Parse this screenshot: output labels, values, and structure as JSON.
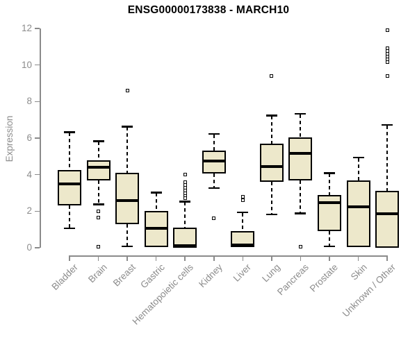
{
  "title": "ENSG00000173838 - MARCH10",
  "chart_data": {
    "type": "boxplot",
    "title": "ENSG00000173838 - MARCH10",
    "xlabel": "",
    "ylabel": "Expression",
    "ylim": [
      0,
      12
    ],
    "yticks": [
      0,
      2,
      4,
      6,
      8,
      10,
      12
    ],
    "grid": false,
    "legend": "none",
    "categories": [
      "Bladder",
      "Brain",
      "Breast",
      "Gastric",
      "Hematopoietic cells",
      "Kidney",
      "Liver",
      "Lung",
      "Pancreas",
      "Prostate",
      "Skin",
      "Unknown / Other"
    ],
    "boxes": [
      {
        "category": "Bladder",
        "whisker_low": 1.1,
        "q1": 2.3,
        "median": 3.5,
        "q3": 4.25,
        "whisker_high": 6.3,
        "outliers": []
      },
      {
        "category": "Brain",
        "whisker_low": 2.4,
        "q1": 3.7,
        "median": 4.4,
        "q3": 4.8,
        "whisker_high": 5.8,
        "outliers": [
          2.0,
          1.65,
          0.05
        ]
      },
      {
        "category": "Breast",
        "whisker_low": 0.1,
        "q1": 1.3,
        "median": 2.6,
        "q3": 4.1,
        "whisker_high": 6.6,
        "outliers": [
          8.6
        ]
      },
      {
        "category": "Gastric",
        "whisker_low": null,
        "q1": 0.05,
        "median": 1.05,
        "q3": 2.0,
        "whisker_high": 3.0,
        "outliers": []
      },
      {
        "category": "Hematopoietic cells",
        "whisker_low": null,
        "q1": 0.0,
        "median": 0.1,
        "q3": 1.1,
        "whisker_high": 2.5,
        "outliers": [
          2.7,
          2.85,
          3.0,
          3.15,
          3.3,
          3.45,
          3.6,
          4.0
        ]
      },
      {
        "category": "Kidney",
        "whisker_low": 3.3,
        "q1": 4.05,
        "median": 4.75,
        "q3": 5.3,
        "whisker_high": 6.2,
        "outliers": [
          1.6
        ]
      },
      {
        "category": "Liver",
        "whisker_low": null,
        "q1": 0.05,
        "median": 0.15,
        "q3": 0.9,
        "whisker_high": 1.9,
        "outliers": [
          2.6,
          2.8
        ]
      },
      {
        "category": "Lung",
        "whisker_low": 1.85,
        "q1": 3.6,
        "median": 4.45,
        "q3": 5.7,
        "whisker_high": 7.2,
        "outliers": [
          9.4
        ]
      },
      {
        "category": "Pancreas",
        "whisker_low": 1.9,
        "q1": 3.7,
        "median": 5.15,
        "q3": 6.05,
        "whisker_high": 7.3,
        "outliers": [
          0.05
        ]
      },
      {
        "category": "Prostate",
        "whisker_low": 0.1,
        "q1": 0.9,
        "median": 2.45,
        "q3": 2.9,
        "whisker_high": 4.05,
        "outliers": []
      },
      {
        "category": "Skin",
        "whisker_low": null,
        "q1": 0.05,
        "median": 2.25,
        "q3": 3.7,
        "whisker_high": 4.9,
        "outliers": []
      },
      {
        "category": "Unknown / Other",
        "whisker_low": null,
        "q1": 0.0,
        "median": 1.85,
        "q3": 3.1,
        "whisker_high": 6.7,
        "outliers": [
          9.4,
          10.15,
          10.3,
          10.45,
          10.6,
          10.75,
          10.9,
          11.9
        ]
      }
    ],
    "colors": {
      "background": "#FFFFFF",
      "box_fill": "#EDE8CB",
      "box_border": "#000000",
      "median": "#000000",
      "whisker": "#000000",
      "outlier_fill": "#FFFFFF",
      "axis": "#8A8A8A",
      "tick_label": "#8C8C8C",
      "title": "#000000"
    }
  }
}
